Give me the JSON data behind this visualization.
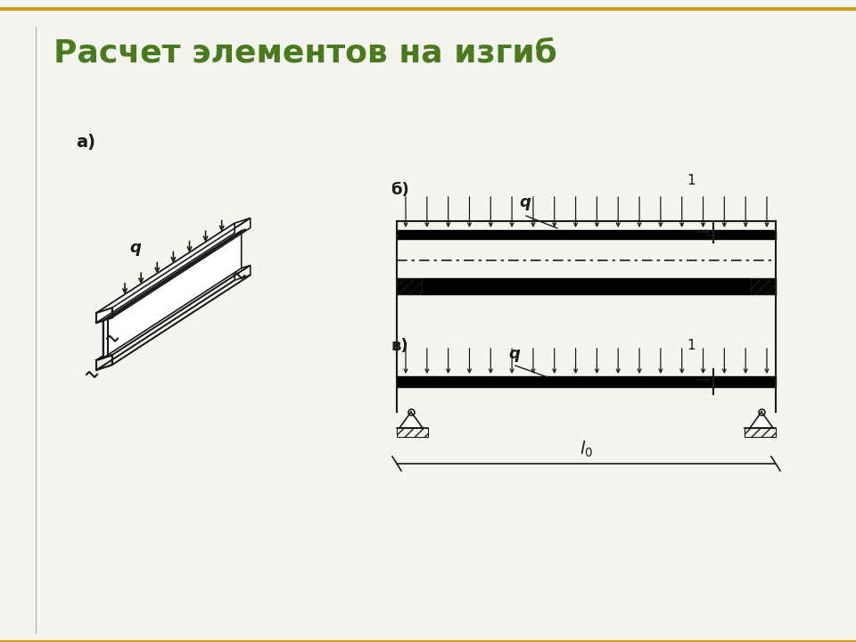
{
  "title": "Расчет элементов на изгиб",
  "title_color": "#4a7a1e",
  "title_fontsize": 26,
  "bg_color": "#f5f5f0",
  "border_top_color": "#c8a020",
  "border_bottom_color": "#c8a020",
  "line_color": "#1a1a1a",
  "label_a": "а)",
  "label_b": "б)",
  "label_v": "в)",
  "label_q": "q",
  "label_l0": "l₀",
  "label_1": "1"
}
